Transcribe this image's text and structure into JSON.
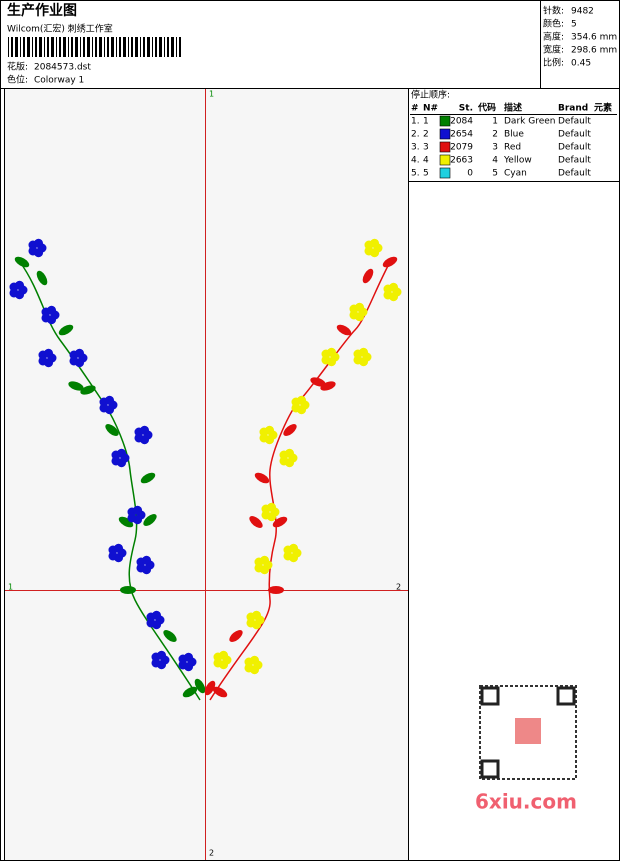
{
  "header": {
    "title": "生产作业图",
    "company": "Wilcom(汇宏) 刺绣工作室",
    "design_label": "花版:",
    "design": "2084573.dst",
    "colorway_label": "色位:",
    "colorway": "Colorway 1"
  },
  "stats": [
    {
      "label": "针数:",
      "value": "9482"
    },
    {
      "label": "颜色:",
      "value": "5"
    },
    {
      "label": "高度:",
      "value": "354.6 mm"
    },
    {
      "label": "宽度:",
      "value": "298.6 mm"
    },
    {
      "label": "比例:",
      "value": "0.45"
    }
  ],
  "stop_sequence": {
    "title": "停止顺序:",
    "columns": [
      "#",
      "N#",
      "St.",
      "代码",
      "描述",
      "Brand",
      "元素"
    ],
    "rows": [
      {
        "number": "1.",
        "needle": "1",
        "color": "#008000",
        "stitches": "2084",
        "code": "1",
        "description": "Dark Green",
        "brand": "Default"
      },
      {
        "number": "2.",
        "needle": "2",
        "color": "#1010d0",
        "stitches": "2654",
        "code": "2",
        "description": "Blue",
        "brand": "Default"
      },
      {
        "number": "3.",
        "needle": "3",
        "color": "#e01010",
        "stitches": "2079",
        "code": "3",
        "description": "Red",
        "brand": "Default"
      },
      {
        "number": "4.",
        "needle": "4",
        "color": "#f0f000",
        "stitches": "2663",
        "code": "4",
        "description": "Yellow",
        "brand": "Default"
      },
      {
        "number": "5.",
        "needle": "5",
        "color": "#20d0e0",
        "stitches": "0",
        "code": "5",
        "description": "Cyan",
        "brand": "Default"
      }
    ]
  },
  "axes": {
    "top": "1",
    "bottom": "2",
    "left": "1",
    "right": "2"
  },
  "watermark": "6xiu.com"
}
